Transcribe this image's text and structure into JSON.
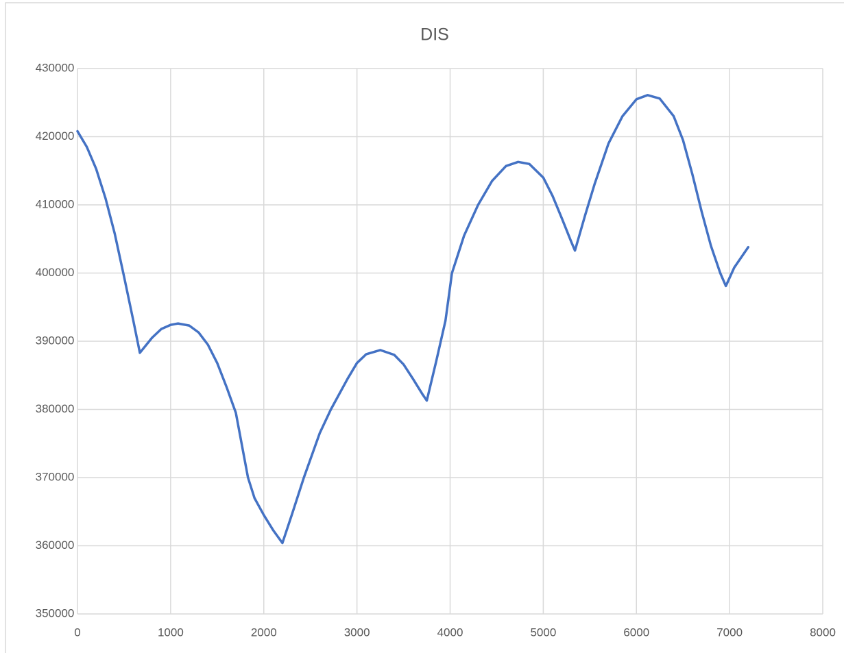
{
  "chart_data": {
    "type": "line",
    "title": "DIS",
    "x": [
      0,
      100,
      200,
      300,
      400,
      500,
      600,
      670,
      800,
      900,
      1000,
      1080,
      1200,
      1300,
      1400,
      1500,
      1600,
      1700,
      1830,
      1900,
      2000,
      2100,
      2200,
      2300,
      2430,
      2600,
      2720,
      2900,
      3000,
      3100,
      3250,
      3400,
      3500,
      3600,
      3700,
      3750,
      3850,
      3950,
      4020,
      4150,
      4300,
      4450,
      4600,
      4730,
      4850,
      5000,
      5100,
      5200,
      5300,
      5340,
      5450,
      5550,
      5700,
      5850,
      6000,
      6120,
      6250,
      6400,
      6500,
      6600,
      6700,
      6800,
      6900,
      6960,
      7050,
      7200
    ],
    "series": [
      {
        "name": "DIS",
        "color": "#4472c4",
        "values": [
          420800,
          418500,
          415300,
          411000,
          405800,
          399500,
          393000,
          388300,
          390500,
          391800,
          392400,
          392600,
          392300,
          391300,
          389500,
          386800,
          383300,
          379500,
          370000,
          367000,
          364500,
          362300,
          360400,
          364500,
          370000,
          376500,
          380000,
          384500,
          386800,
          388100,
          388700,
          388000,
          386600,
          384500,
          382300,
          381300,
          387000,
          393000,
          400000,
          405500,
          410000,
          413500,
          415700,
          416300,
          416000,
          414000,
          411300,
          408000,
          404600,
          403300,
          408500,
          413000,
          419000,
          423000,
          425500,
          426100,
          425600,
          423000,
          419500,
          414500,
          409000,
          404000,
          400000,
          398100,
          400800,
          403800
        ]
      }
    ],
    "xlim": [
      0,
      8000
    ],
    "xticks": [
      0,
      1000,
      2000,
      3000,
      4000,
      5000,
      6000,
      7000,
      8000
    ],
    "ylim": [
      350000,
      430000
    ],
    "yticks": [
      350000,
      360000,
      370000,
      380000,
      390000,
      400000,
      410000,
      420000,
      430000
    ],
    "grid": true
  }
}
